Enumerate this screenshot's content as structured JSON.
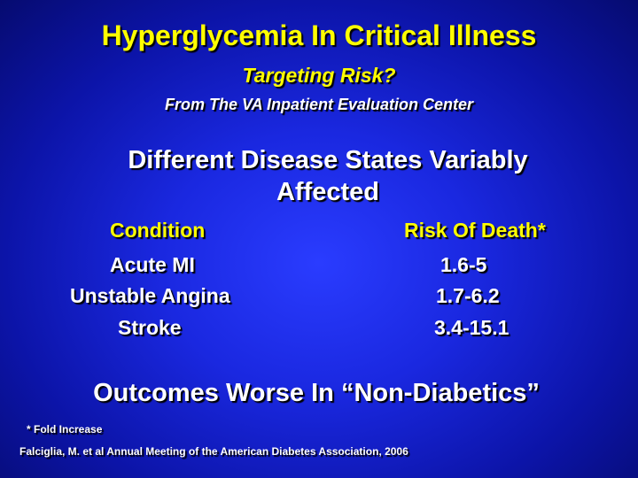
{
  "slide": {
    "title": "Hyperglycemia In Critical Illness",
    "subtitle": "Targeting Risk?",
    "source": "From The VA Inpatient Evaluation Center",
    "heading_line1": "Different Disease States Variably",
    "heading_line2": "Affected",
    "table": {
      "headers": [
        "Condition",
        "Risk Of Death*"
      ],
      "rows": [
        [
          "Acute MI",
          "1.6-5"
        ],
        [
          "Unstable Angina",
          "1.7-6.2"
        ],
        [
          "Stroke",
          "3.4-15.1"
        ]
      ]
    },
    "outcomes": "Outcomes Worse In “Non-Diabetics”",
    "footnote": "* Fold Increase",
    "citation": "Falciglia, M. et al Annual Meeting of the American Diabetes Association, 2006"
  },
  "colors": {
    "title": "#ffff00",
    "body_text": "#ffffff",
    "background": "#1a28e0"
  }
}
